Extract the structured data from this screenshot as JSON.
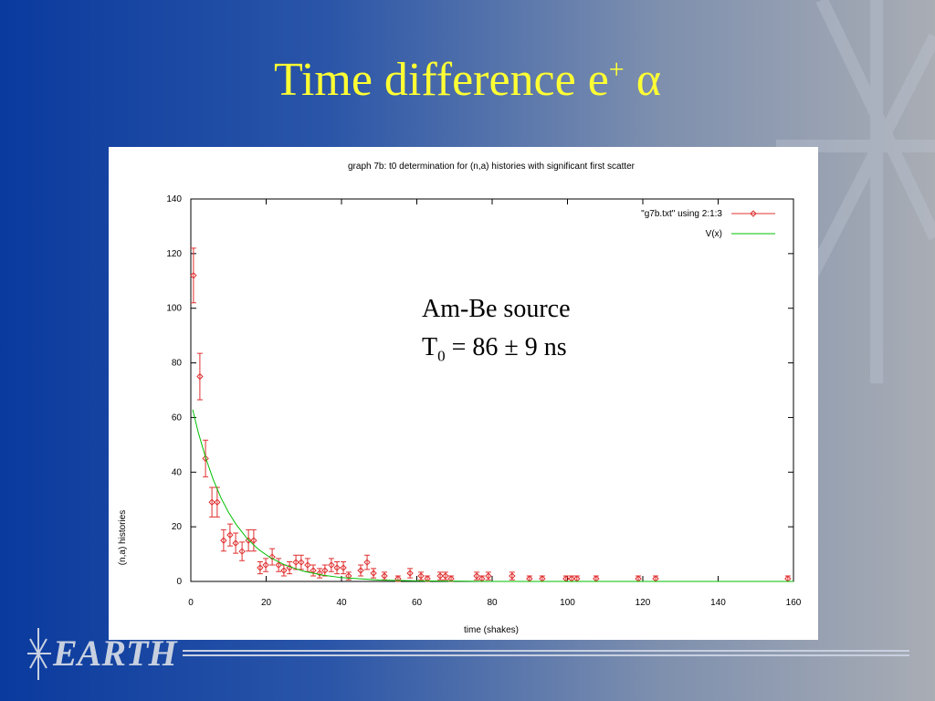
{
  "slide_title": {
    "text": "Time difference e",
    "sup": "+",
    "tail": "α"
  },
  "annotation": {
    "line1": "Am-Be source",
    "symbol": "T",
    "sub": "0",
    "rest": "= 86 ± 9 ns"
  },
  "logo": "EARTH",
  "chart_data": {
    "type": "scatter",
    "title": "graph 7b: t0 determination for (n,a) histories with significant first scatter",
    "xlabel": "time (shakes)",
    "ylabel": "(n,a) histories",
    "xlim": [
      0,
      160
    ],
    "ylim": [
      0,
      140
    ],
    "xticks": [
      0,
      20,
      40,
      60,
      80,
      100,
      120,
      140,
      160
    ],
    "yticks": [
      0,
      20,
      40,
      60,
      80,
      100,
      120,
      140
    ],
    "legend": "upper-right",
    "series": [
      {
        "name": "\"g7b.txt\" using 2:1:3",
        "color": "#e03030",
        "mode": "points",
        "x": [
          0.7,
          2.4,
          3.9,
          5.6,
          7,
          8.7,
          10.4,
          11.9,
          13.6,
          15.3,
          16.7,
          18.4,
          19.9,
          21.6,
          23.3,
          24.7,
          26.2,
          27.9,
          29.3,
          31,
          32.5,
          34.2,
          35.6,
          37.3,
          38.8,
          40.5,
          41.9,
          45.1,
          46.8,
          48.5,
          51.4,
          55,
          58.2,
          61.1,
          62.8,
          66.2,
          67.6,
          69.1,
          75.9,
          77.3,
          79,
          85.3,
          89.9,
          93.3,
          99.6,
          101.1,
          102.5,
          107.6,
          118.8,
          123.4,
          158.5
        ],
        "values": [
          112,
          75,
          45,
          29,
          29,
          15,
          17,
          14,
          11,
          15,
          15,
          5,
          6,
          9,
          6,
          4,
          5,
          7,
          7,
          6,
          4,
          3,
          4,
          6,
          5,
          5,
          2,
          4,
          7,
          3,
          2,
          1,
          3,
          2,
          1,
          2,
          2,
          1,
          2,
          1,
          2,
          2,
          1,
          1,
          1,
          1,
          1,
          1,
          1,
          1,
          1
        ],
        "errors": [
          10,
          8.5,
          6.7,
          5.4,
          5.4,
          3.9,
          4,
          3.7,
          3.4,
          3.9,
          3.9,
          2.2,
          2.4,
          3,
          2.4,
          2,
          2.2,
          2.6,
          2.6,
          2.4,
          2,
          1.7,
          2,
          2.4,
          2.2,
          2.2,
          1.4,
          2,
          2.6,
          1.7,
          1.4,
          1,
          1.7,
          1.4,
          1,
          1.4,
          1.4,
          1,
          1.4,
          1,
          1.4,
          1.4,
          1,
          1,
          1,
          1,
          1,
          1,
          1,
          1,
          1
        ]
      },
      {
        "name": "V(x)",
        "color": "#00c000",
        "mode": "line",
        "x": [
          0.5,
          2,
          4,
          6,
          8,
          10,
          12,
          15,
          18,
          21,
          25,
          30,
          35,
          40,
          50,
          60,
          80,
          100,
          120,
          140,
          160
        ],
        "values": [
          62.9,
          54.4,
          45,
          37.1,
          30.6,
          25.3,
          20.9,
          15.6,
          11.7,
          8.8,
          6,
          3.7,
          2.3,
          1.4,
          0.5,
          0.2,
          0,
          0,
          0,
          0,
          0
        ]
      }
    ]
  }
}
